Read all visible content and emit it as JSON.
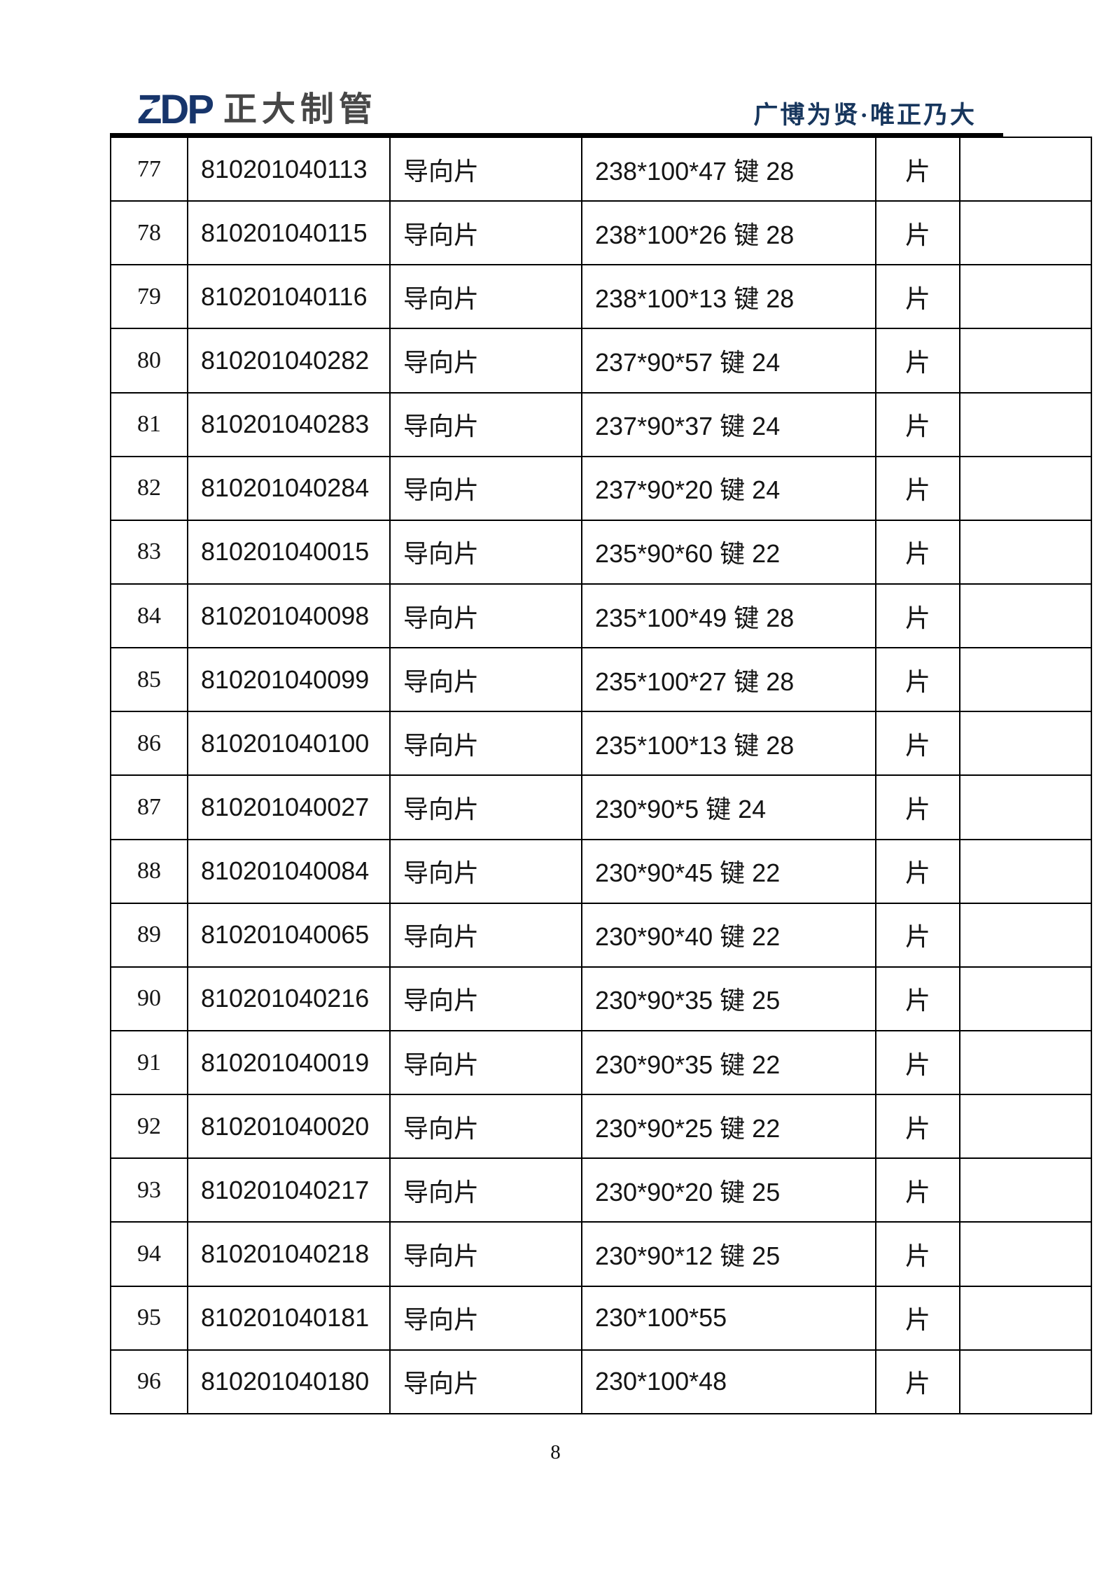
{
  "header": {
    "logo_mark": "ZDP",
    "logo_company": "正大制管",
    "slogan": "广博为贤·唯正乃大",
    "colors": {
      "logo_mark": "#17356b",
      "logo_company": "#474747",
      "slogan": "#17365d"
    }
  },
  "table": {
    "rows": [
      {
        "seq": "77",
        "code": "810201040113",
        "name": "导向片",
        "spec": "238*100*47 键 28",
        "unit": "片",
        "note": ""
      },
      {
        "seq": "78",
        "code": "810201040115",
        "name": "导向片",
        "spec": "238*100*26 键 28",
        "unit": "片",
        "note": ""
      },
      {
        "seq": "79",
        "code": "810201040116",
        "name": "导向片",
        "spec": "238*100*13 键 28",
        "unit": "片",
        "note": ""
      },
      {
        "seq": "80",
        "code": "810201040282",
        "name": "导向片",
        "spec": "237*90*57 键 24",
        "unit": "片",
        "note": ""
      },
      {
        "seq": "81",
        "code": "810201040283",
        "name": "导向片",
        "spec": "237*90*37 键 24",
        "unit": "片",
        "note": ""
      },
      {
        "seq": "82",
        "code": "810201040284",
        "name": "导向片",
        "spec": "237*90*20 键 24",
        "unit": "片",
        "note": ""
      },
      {
        "seq": "83",
        "code": "810201040015",
        "name": "导向片",
        "spec": "235*90*60 键 22",
        "unit": "片",
        "note": ""
      },
      {
        "seq": "84",
        "code": "810201040098",
        "name": "导向片",
        "spec": "235*100*49 键 28",
        "unit": "片",
        "note": ""
      },
      {
        "seq": "85",
        "code": "810201040099",
        "name": "导向片",
        "spec": "235*100*27 键 28",
        "unit": "片",
        "note": ""
      },
      {
        "seq": "86",
        "code": "810201040100",
        "name": "导向片",
        "spec": "235*100*13 键 28",
        "unit": "片",
        "note": ""
      },
      {
        "seq": "87",
        "code": "810201040027",
        "name": "导向片",
        "spec": "230*90*5 键 24",
        "unit": "片",
        "note": ""
      },
      {
        "seq": "88",
        "code": "810201040084",
        "name": "导向片",
        "spec": "230*90*45 键 22",
        "unit": "片",
        "note": ""
      },
      {
        "seq": "89",
        "code": "810201040065",
        "name": "导向片",
        "spec": "230*90*40 键 22",
        "unit": "片",
        "note": ""
      },
      {
        "seq": "90",
        "code": "810201040216",
        "name": "导向片",
        "spec": "230*90*35 键 25",
        "unit": "片",
        "note": ""
      },
      {
        "seq": "91",
        "code": "810201040019",
        "name": "导向片",
        "spec": "230*90*35 键 22",
        "unit": "片",
        "note": ""
      },
      {
        "seq": "92",
        "code": "810201040020",
        "name": "导向片",
        "spec": "230*90*25 键 22",
        "unit": "片",
        "note": ""
      },
      {
        "seq": "93",
        "code": "810201040217",
        "name": "导向片",
        "spec": "230*90*20 键 25",
        "unit": "片",
        "note": ""
      },
      {
        "seq": "94",
        "code": "810201040218",
        "name": "导向片",
        "spec": "230*90*12 键 25",
        "unit": "片",
        "note": ""
      },
      {
        "seq": "95",
        "code": "810201040181",
        "name": "导向片",
        "spec": "230*100*55",
        "unit": "片",
        "note": ""
      },
      {
        "seq": "96",
        "code": "810201040180",
        "name": "导向片",
        "spec": "230*100*48",
        "unit": "片",
        "note": ""
      }
    ]
  },
  "footer": {
    "page_number": "8"
  }
}
